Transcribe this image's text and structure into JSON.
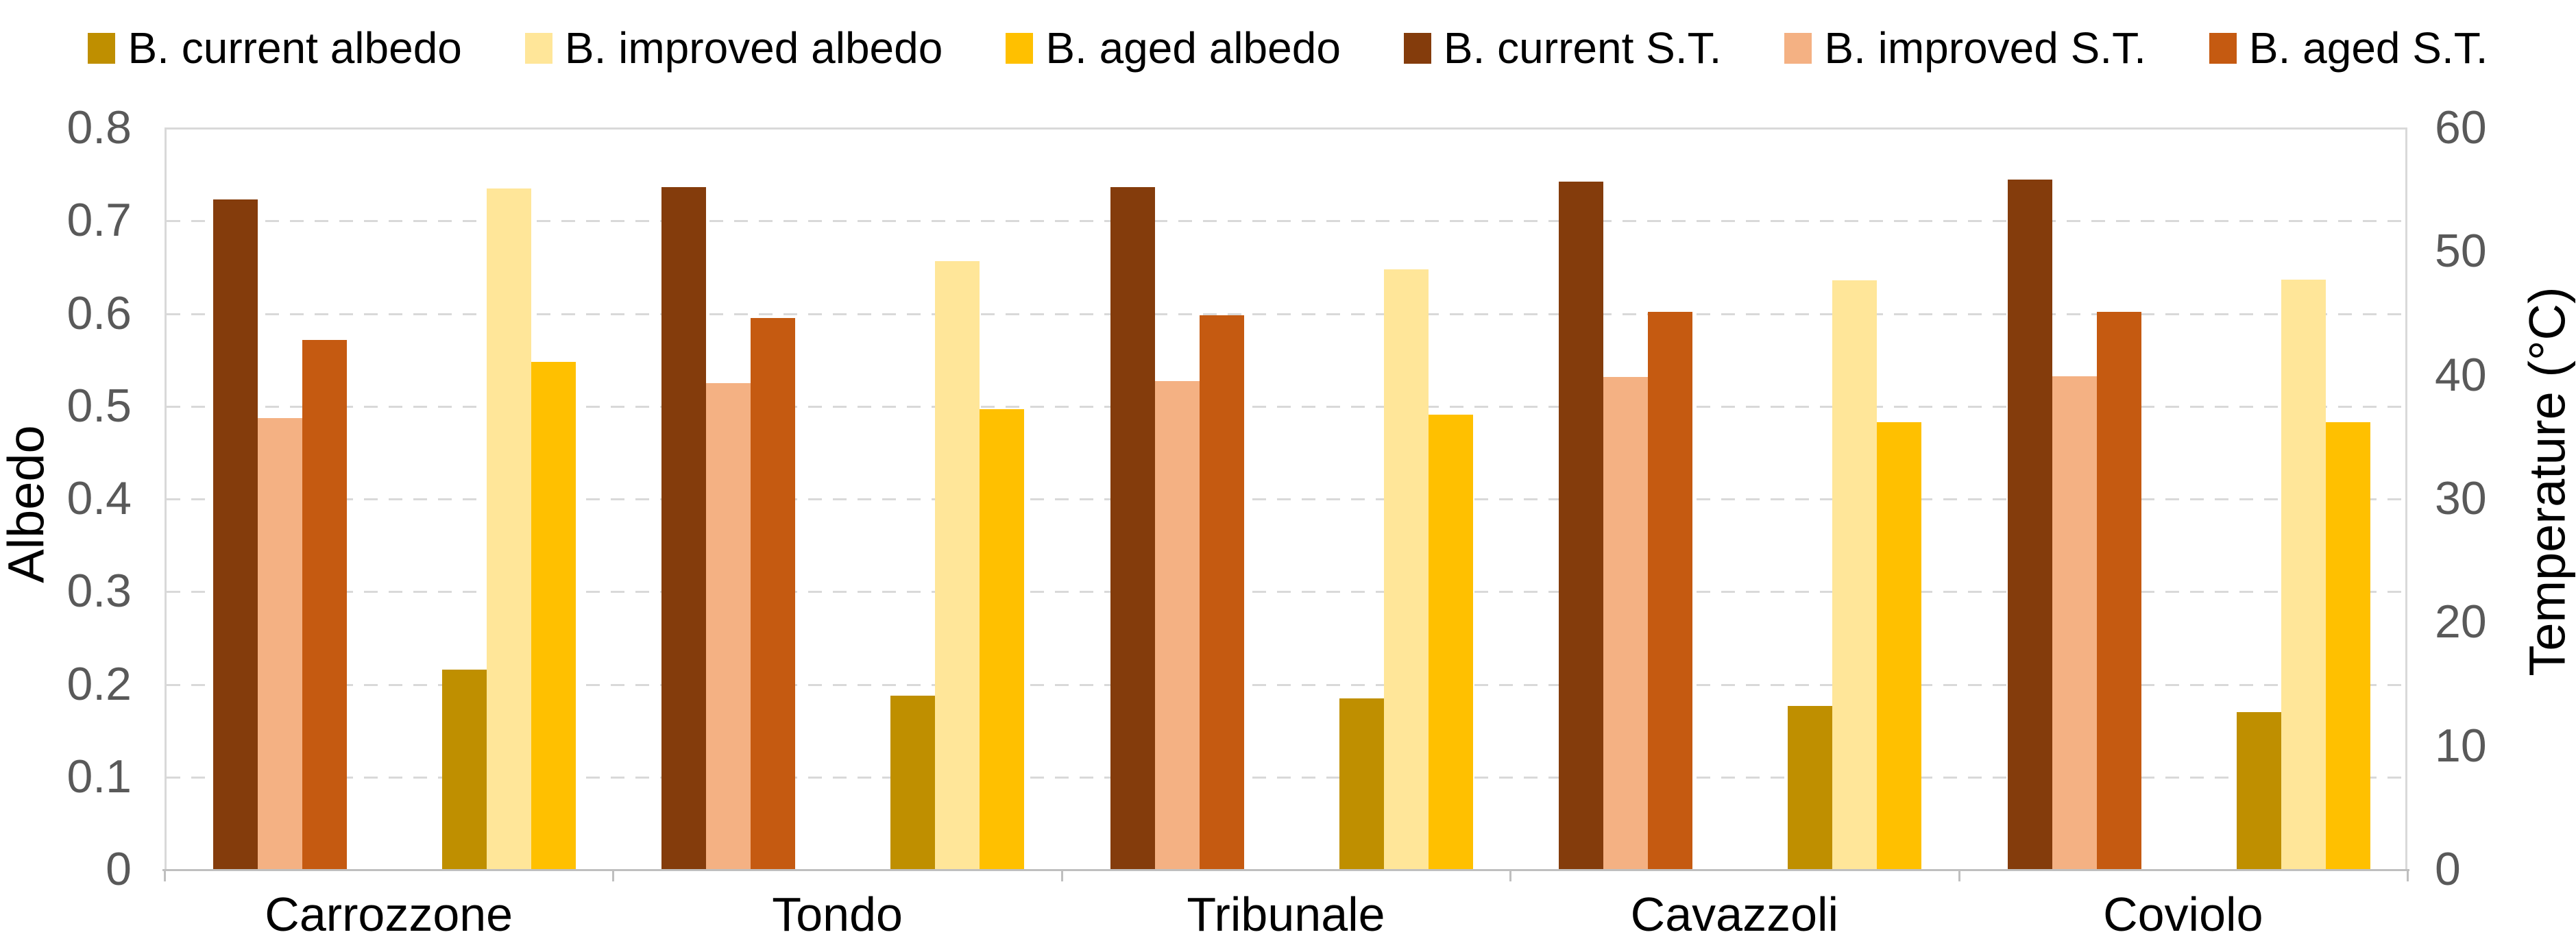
{
  "chart": {
    "legend": {
      "items": [
        {
          "label": "B. current albedo",
          "color": "#BF8F00"
        },
        {
          "label": "B. improved albedo",
          "color": "#FFE699"
        },
        {
          "label": "B. aged albedo",
          "color": "#FFC000"
        },
        {
          "label": "B. current S.T.",
          "color": "#843C0C"
        },
        {
          "label": "B. improved S.T.",
          "color": "#F4B183"
        },
        {
          "label": "B. aged S.T.",
          "color": "#C55A11"
        }
      ]
    },
    "left_axis": {
      "title": "Albedo",
      "ticks": [
        "0.8",
        "0.7",
        "0.6",
        "0.5",
        "0.4",
        "0.3",
        "0.2",
        "0.1",
        "0"
      ]
    },
    "right_axis": {
      "title": "Temperature (°C)",
      "ticks": [
        "60",
        "50",
        "40",
        "30",
        "20",
        "10",
        "0"
      ]
    }
  },
  "chart_data": {
    "type": "bar",
    "categories": [
      "Carrozzone",
      "Tondo",
      "Tribunale",
      "Cavazzoli",
      "Coviolo"
    ],
    "series": [
      {
        "name": "B. current S.T.",
        "axis": "right",
        "color": "#843C0C",
        "values": [
          54.2,
          55.2,
          55.2,
          55.6,
          55.8
        ]
      },
      {
        "name": "B. improved S.T.",
        "axis": "right",
        "color": "#F4B183",
        "values": [
          36.5,
          39.3,
          39.5,
          39.8,
          39.9
        ]
      },
      {
        "name": "B. aged S.T.",
        "axis": "right",
        "color": "#C55A11",
        "values": [
          42.8,
          44.6,
          44.8,
          45.1,
          45.1
        ]
      },
      {
        "name": "B. current albedo",
        "axis": "left",
        "color": "#BF8F00",
        "values": [
          0.215,
          0.187,
          0.184,
          0.176,
          0.169
        ]
      },
      {
        "name": "B. improved albedo",
        "axis": "left",
        "color": "#FFE699",
        "values": [
          0.734,
          0.656,
          0.647,
          0.635,
          0.636
        ]
      },
      {
        "name": "B. aged albedo",
        "axis": "left",
        "color": "#FFC000",
        "values": [
          0.547,
          0.496,
          0.49,
          0.482,
          0.482
        ]
      }
    ],
    "title": "",
    "xlabel": "",
    "left_ylabel": "Albedo",
    "right_ylabel": "Temperature (°C)",
    "left_ylim": [
      0,
      0.8
    ],
    "right_ylim": [
      0,
      60
    ],
    "grid": "horizontal dashed, 0.1 albedo steps",
    "legend_position": "top",
    "colors": {
      "gridline": "#D9D9D9",
      "axis_line": "#BFBFBF",
      "tick_text": "#595959",
      "title_text": "#000000"
    }
  }
}
